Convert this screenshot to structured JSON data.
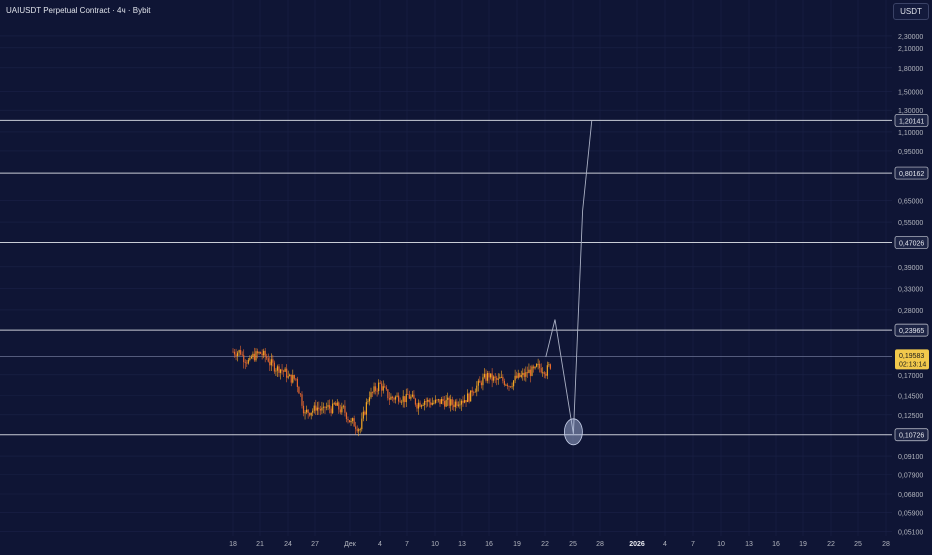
{
  "header": {
    "title": "UAIUSDT Perpetual Contract · 4ч · Bybit"
  },
  "currency_badge": "USDT",
  "colors": {
    "background": "#0f1535",
    "grid": "#1b2247",
    "candle_up": "#f5a623",
    "candle_down": "#e8682e",
    "level_line": "#c9ccd6",
    "current_price_bg": "#f2c94c",
    "axis_text": "#b2b5be",
    "drawing": "#aab0c4"
  },
  "chart_data": {
    "type": "candlestick",
    "scale": "log",
    "ylim": [
      0.05,
      2.6
    ],
    "y_ticks": [
      "2,30000",
      "2,10000",
      "1,80000",
      "1,50000",
      "1,30000",
      "1,10000",
      "0,95000",
      "0,65000",
      "0,55000",
      "0,39000",
      "0,33000",
      "0,28000",
      "0,17000",
      "0,14500",
      "0,12500",
      "0,09100",
      "0,07900",
      "0,06800",
      "0,05900",
      "0,05100"
    ],
    "x_ticks": [
      "18",
      "21",
      "24",
      "27",
      "Дек",
      "4",
      "7",
      "10",
      "13",
      "16",
      "19",
      "22",
      "25",
      "28",
      "2026",
      "4",
      "7",
      "10",
      "13",
      "16",
      "19",
      "22",
      "25",
      "28"
    ],
    "horizontal_levels": [
      {
        "value": 1.20141,
        "label": "1,20141"
      },
      {
        "value": 0.80162,
        "label": "0,80162"
      },
      {
        "value": 0.47026,
        "label": "0,47026"
      },
      {
        "value": 0.23965,
        "label": "0,23965"
      },
      {
        "value": 0.10726,
        "label": "0,10726"
      }
    ],
    "current_price": {
      "value": 0.19583,
      "label": "0,19583",
      "countdown": "02:13:14"
    },
    "price_path": [
      {
        "date": "Nov 18",
        "close": 0.203
      },
      {
        "date": "Nov 19",
        "close": 0.186
      },
      {
        "date": "Nov 20",
        "close": 0.2
      },
      {
        "date": "Nov 21",
        "close": 0.192
      },
      {
        "date": "Nov 22",
        "close": 0.178
      },
      {
        "date": "Nov 23",
        "close": 0.171
      },
      {
        "date": "Nov 24",
        "close": 0.165
      },
      {
        "date": "Nov 25",
        "close": 0.125
      },
      {
        "date": "Nov 26",
        "close": 0.13
      },
      {
        "date": "Nov 27",
        "close": 0.128
      },
      {
        "date": "Nov 28",
        "close": 0.131
      },
      {
        "date": "Nov 29",
        "close": 0.129
      },
      {
        "date": "Nov 30",
        "close": 0.117
      },
      {
        "date": "Dec 1",
        "close": 0.112
      },
      {
        "date": "Dec 2",
        "close": 0.147
      },
      {
        "date": "Dec 3",
        "close": 0.157
      },
      {
        "date": "Dec 4",
        "close": 0.145
      },
      {
        "date": "Dec 5",
        "close": 0.143
      },
      {
        "date": "Dec 6",
        "close": 0.141
      },
      {
        "date": "Dec 7",
        "close": 0.138
      },
      {
        "date": "Dec 8",
        "close": 0.14
      },
      {
        "date": "Dec 9",
        "close": 0.137
      },
      {
        "date": "Dec 10",
        "close": 0.139
      },
      {
        "date": "Dec 11",
        "close": 0.136
      },
      {
        "date": "Dec 12",
        "close": 0.142
      },
      {
        "date": "Dec 13",
        "close": 0.145
      },
      {
        "date": "Dec 14",
        "close": 0.158
      },
      {
        "date": "Dec 15",
        "close": 0.17
      },
      {
        "date": "Dec 16",
        "close": 0.162
      },
      {
        "date": "Dec 17",
        "close": 0.16
      },
      {
        "date": "Dec 18",
        "close": 0.166
      },
      {
        "date": "Dec 19",
        "close": 0.17
      },
      {
        "date": "Dec 20",
        "close": 0.175
      },
      {
        "date": "Dec 21",
        "close": 0.178
      },
      {
        "date": "Dec 22",
        "close": 0.19
      }
    ],
    "projection": [
      {
        "date": "Dec 22",
        "price": 0.195
      },
      {
        "date": "Dec 23",
        "price": 0.26
      },
      {
        "date": "Dec 25",
        "price": 0.108
      },
      {
        "date": "Dec 26",
        "price": 0.6
      },
      {
        "date": "Dec 27",
        "price": 1.20141
      }
    ]
  }
}
